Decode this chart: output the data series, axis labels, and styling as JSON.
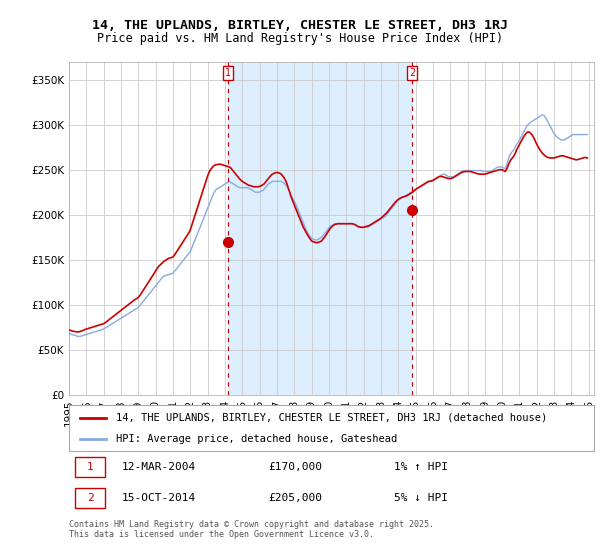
{
  "title": "14, THE UPLANDS, BIRTLEY, CHESTER LE STREET, DH3 1RJ",
  "subtitle": "Price paid vs. HM Land Registry's House Price Index (HPI)",
  "ylim": [
    0,
    370000
  ],
  "yticks": [
    0,
    50000,
    100000,
    150000,
    200000,
    250000,
    300000,
    350000
  ],
  "ytick_labels": [
    "£0",
    "£50K",
    "£100K",
    "£150K",
    "£200K",
    "£250K",
    "£300K",
    "£350K"
  ],
  "background_color": "#ffffff",
  "plot_bg_color": "#ffffff",
  "shade_color": "#ddeeff",
  "grid_color": "#cccccc",
  "line_color_property": "#cc0000",
  "line_color_hpi": "#88aadd",
  "transaction1_date_x": 2004.19,
  "transaction1_price": 170000,
  "transaction2_date_x": 2014.79,
  "transaction2_price": 205000,
  "legend_property": "14, THE UPLANDS, BIRTLEY, CHESTER LE STREET, DH3 1RJ (detached house)",
  "legend_hpi": "HPI: Average price, detached house, Gateshead",
  "annotation1": [
    "1",
    "12-MAR-2004",
    "£170,000",
    "1% ↑ HPI"
  ],
  "annotation2": [
    "2",
    "15-OCT-2014",
    "£205,000",
    "5% ↓ HPI"
  ],
  "footer": "Contains HM Land Registry data © Crown copyright and database right 2025.\nThis data is licensed under the Open Government Licence v3.0.",
  "title_fontsize": 9.5,
  "subtitle_fontsize": 8.5,
  "tick_fontsize": 7.5,
  "xmin": 1995,
  "xmax": 2025.3,
  "hpi_months": [
    1995.0,
    1995.083,
    1995.167,
    1995.25,
    1995.333,
    1995.417,
    1995.5,
    1995.583,
    1995.667,
    1995.75,
    1995.833,
    1995.917,
    1996.0,
    1996.083,
    1996.167,
    1996.25,
    1996.333,
    1996.417,
    1996.5,
    1996.583,
    1996.667,
    1996.75,
    1996.833,
    1996.917,
    1997.0,
    1997.083,
    1997.167,
    1997.25,
    1997.333,
    1997.417,
    1997.5,
    1997.583,
    1997.667,
    1997.75,
    1997.833,
    1997.917,
    1998.0,
    1998.083,
    1998.167,
    1998.25,
    1998.333,
    1998.417,
    1998.5,
    1998.583,
    1998.667,
    1998.75,
    1998.833,
    1998.917,
    1999.0,
    1999.083,
    1999.167,
    1999.25,
    1999.333,
    1999.417,
    1999.5,
    1999.583,
    1999.667,
    1999.75,
    1999.833,
    1999.917,
    2000.0,
    2000.083,
    2000.167,
    2000.25,
    2000.333,
    2000.417,
    2000.5,
    2000.583,
    2000.667,
    2000.75,
    2000.833,
    2000.917,
    2001.0,
    2001.083,
    2001.167,
    2001.25,
    2001.333,
    2001.417,
    2001.5,
    2001.583,
    2001.667,
    2001.75,
    2001.833,
    2001.917,
    2002.0,
    2002.083,
    2002.167,
    2002.25,
    2002.333,
    2002.417,
    2002.5,
    2002.583,
    2002.667,
    2002.75,
    2002.833,
    2002.917,
    2003.0,
    2003.083,
    2003.167,
    2003.25,
    2003.333,
    2003.417,
    2003.5,
    2003.583,
    2003.667,
    2003.75,
    2003.833,
    2003.917,
    2004.0,
    2004.083,
    2004.167,
    2004.25,
    2004.333,
    2004.417,
    2004.5,
    2004.583,
    2004.667,
    2004.75,
    2004.833,
    2004.917,
    2005.0,
    2005.083,
    2005.167,
    2005.25,
    2005.333,
    2005.417,
    2005.5,
    2005.583,
    2005.667,
    2005.75,
    2005.833,
    2005.917,
    2006.0,
    2006.083,
    2006.167,
    2006.25,
    2006.333,
    2006.417,
    2006.5,
    2006.583,
    2006.667,
    2006.75,
    2006.833,
    2006.917,
    2007.0,
    2007.083,
    2007.167,
    2007.25,
    2007.333,
    2007.417,
    2007.5,
    2007.583,
    2007.667,
    2007.75,
    2007.833,
    2007.917,
    2008.0,
    2008.083,
    2008.167,
    2008.25,
    2008.333,
    2008.417,
    2008.5,
    2008.583,
    2008.667,
    2008.75,
    2008.833,
    2008.917,
    2009.0,
    2009.083,
    2009.167,
    2009.25,
    2009.333,
    2009.417,
    2009.5,
    2009.583,
    2009.667,
    2009.75,
    2009.833,
    2009.917,
    2010.0,
    2010.083,
    2010.167,
    2010.25,
    2010.333,
    2010.417,
    2010.5,
    2010.583,
    2010.667,
    2010.75,
    2010.833,
    2010.917,
    2011.0,
    2011.083,
    2011.167,
    2011.25,
    2011.333,
    2011.417,
    2011.5,
    2011.583,
    2011.667,
    2011.75,
    2011.833,
    2011.917,
    2012.0,
    2012.083,
    2012.167,
    2012.25,
    2012.333,
    2012.417,
    2012.5,
    2012.583,
    2012.667,
    2012.75,
    2012.833,
    2012.917,
    2013.0,
    2013.083,
    2013.167,
    2013.25,
    2013.333,
    2013.417,
    2013.5,
    2013.583,
    2013.667,
    2013.75,
    2013.833,
    2013.917,
    2014.0,
    2014.083,
    2014.167,
    2014.25,
    2014.333,
    2014.417,
    2014.5,
    2014.583,
    2014.667,
    2014.75,
    2014.833,
    2014.917,
    2015.0,
    2015.083,
    2015.167,
    2015.25,
    2015.333,
    2015.417,
    2015.5,
    2015.583,
    2015.667,
    2015.75,
    2015.833,
    2015.917,
    2016.0,
    2016.083,
    2016.167,
    2016.25,
    2016.333,
    2016.417,
    2016.5,
    2016.583,
    2016.667,
    2016.75,
    2016.833,
    2016.917,
    2017.0,
    2017.083,
    2017.167,
    2017.25,
    2017.333,
    2017.417,
    2017.5,
    2017.583,
    2017.667,
    2017.75,
    2017.833,
    2017.917,
    2018.0,
    2018.083,
    2018.167,
    2018.25,
    2018.333,
    2018.417,
    2018.5,
    2018.583,
    2018.667,
    2018.75,
    2018.833,
    2018.917,
    2019.0,
    2019.083,
    2019.167,
    2019.25,
    2019.333,
    2019.417,
    2019.5,
    2019.583,
    2019.667,
    2019.75,
    2019.833,
    2019.917,
    2020.0,
    2020.083,
    2020.167,
    2020.25,
    2020.333,
    2020.417,
    2020.5,
    2020.583,
    2020.667,
    2020.75,
    2020.833,
    2020.917,
    2021.0,
    2021.083,
    2021.167,
    2021.25,
    2021.333,
    2021.417,
    2021.5,
    2021.583,
    2021.667,
    2021.75,
    2021.833,
    2021.917,
    2022.0,
    2022.083,
    2022.167,
    2022.25,
    2022.333,
    2022.417,
    2022.5,
    2022.583,
    2022.667,
    2022.75,
    2022.833,
    2022.917,
    2023.0,
    2023.083,
    2023.167,
    2023.25,
    2023.333,
    2023.417,
    2023.5,
    2023.583,
    2023.667,
    2023.75,
    2023.833,
    2023.917,
    2024.0,
    2024.083,
    2024.167,
    2024.25,
    2024.333,
    2024.417,
    2024.5,
    2024.583,
    2024.667,
    2024.75,
    2024.833,
    2024.917
  ],
  "hpi_values": [
    68000,
    67500,
    67000,
    66500,
    66000,
    65500,
    65000,
    64800,
    65000,
    65500,
    66000,
    66500,
    67000,
    67500,
    68000,
    68500,
    69000,
    69500,
    70000,
    70500,
    71000,
    71500,
    72000,
    72500,
    73000,
    74000,
    75000,
    76000,
    77000,
    78000,
    79000,
    80000,
    81000,
    82000,
    83000,
    84000,
    85000,
    86000,
    87000,
    88000,
    89000,
    90000,
    91000,
    92000,
    93000,
    94000,
    95000,
    96000,
    97000,
    99000,
    101000,
    103000,
    105000,
    107000,
    109000,
    111000,
    113000,
    115000,
    117000,
    119000,
    121000,
    123000,
    125000,
    127000,
    129000,
    131000,
    132000,
    132500,
    133000,
    133500,
    134000,
    134500,
    135000,
    137000,
    139000,
    141000,
    143000,
    145000,
    147000,
    149000,
    151000,
    153000,
    155000,
    157000,
    159000,
    163000,
    167000,
    171000,
    175000,
    179000,
    183000,
    187000,
    191000,
    195000,
    199000,
    203000,
    207000,
    211000,
    215000,
    219000,
    223000,
    226000,
    228000,
    229000,
    230000,
    231000,
    232000,
    233000,
    234000,
    235000,
    236000,
    237000,
    236000,
    235000,
    234000,
    233000,
    232000,
    231000,
    230000,
    230000,
    230000,
    230000,
    230000,
    230000,
    230000,
    229000,
    228000,
    227000,
    226000,
    225000,
    225000,
    225000,
    225000,
    226000,
    227000,
    228000,
    230000,
    232000,
    234000,
    235000,
    236000,
    237000,
    237000,
    237000,
    237000,
    237000,
    237000,
    237000,
    236000,
    235000,
    233000,
    231000,
    228000,
    225000,
    221000,
    218000,
    215000,
    212000,
    208000,
    204000,
    200000,
    196000,
    192000,
    188000,
    184000,
    181000,
    178000,
    176000,
    174000,
    173000,
    172000,
    172000,
    172000,
    173000,
    174000,
    175000,
    177000,
    179000,
    181000,
    183000,
    185000,
    187000,
    188000,
    189000,
    190000,
    190000,
    190000,
    190000,
    190000,
    190000,
    190000,
    190000,
    190000,
    190000,
    190000,
    190000,
    190000,
    190000,
    189000,
    188000,
    187000,
    186000,
    186000,
    186000,
    186000,
    186000,
    186000,
    186000,
    187000,
    188000,
    189000,
    190000,
    191000,
    192000,
    193000,
    194000,
    195000,
    196000,
    197000,
    198000,
    200000,
    202000,
    204000,
    206000,
    208000,
    210000,
    212000,
    214000,
    216000,
    217000,
    218000,
    219000,
    220000,
    221000,
    222000,
    223000,
    224000,
    225000,
    226000,
    227000,
    228000,
    229000,
    230000,
    231000,
    232000,
    233000,
    234000,
    235000,
    236000,
    237000,
    237000,
    237000,
    238000,
    239000,
    240000,
    241000,
    242000,
    243000,
    244000,
    245000,
    245000,
    244000,
    243000,
    242000,
    242000,
    242000,
    242000,
    243000,
    244000,
    245000,
    246000,
    247000,
    248000,
    249000,
    249000,
    249000,
    249000,
    249000,
    249000,
    249000,
    249000,
    249000,
    249000,
    249000,
    249000,
    249000,
    249000,
    248000,
    248000,
    248000,
    248000,
    248000,
    248000,
    249000,
    250000,
    251000,
    252000,
    253000,
    253000,
    253000,
    253000,
    252000,
    251000,
    255000,
    260000,
    265000,
    268000,
    270000,
    272000,
    275000,
    278000,
    280000,
    283000,
    286000,
    289000,
    292000,
    295000,
    298000,
    300000,
    302000,
    303000,
    304000,
    305000,
    306000,
    307000,
    308000,
    309000,
    310000,
    311000,
    310000,
    308000,
    305000,
    302000,
    299000,
    296000,
    293000,
    290000,
    288000,
    286000,
    285000,
    284000,
    283000,
    283000,
    283000,
    284000,
    285000,
    286000,
    287000,
    288000,
    289000,
    289000,
    289000,
    289000,
    289000,
    289000,
    289000,
    289000,
    289000,
    289000,
    289000
  ],
  "prop_months": [
    1995.0,
    1995.083,
    1995.167,
    1995.25,
    1995.333,
    1995.417,
    1995.5,
    1995.583,
    1995.667,
    1995.75,
    1995.833,
    1995.917,
    1996.0,
    1996.083,
    1996.167,
    1996.25,
    1996.333,
    1996.417,
    1996.5,
    1996.583,
    1996.667,
    1996.75,
    1996.833,
    1996.917,
    1997.0,
    1997.083,
    1997.167,
    1997.25,
    1997.333,
    1997.417,
    1997.5,
    1997.583,
    1997.667,
    1997.75,
    1997.833,
    1997.917,
    1998.0,
    1998.083,
    1998.167,
    1998.25,
    1998.333,
    1998.417,
    1998.5,
    1998.583,
    1998.667,
    1998.75,
    1998.833,
    1998.917,
    1999.0,
    1999.083,
    1999.167,
    1999.25,
    1999.333,
    1999.417,
    1999.5,
    1999.583,
    1999.667,
    1999.75,
    1999.833,
    1999.917,
    2000.0,
    2000.083,
    2000.167,
    2000.25,
    2000.333,
    2000.417,
    2000.5,
    2000.583,
    2000.667,
    2000.75,
    2000.833,
    2000.917,
    2001.0,
    2001.083,
    2001.167,
    2001.25,
    2001.333,
    2001.417,
    2001.5,
    2001.583,
    2001.667,
    2001.75,
    2001.833,
    2001.917,
    2002.0,
    2002.083,
    2002.167,
    2002.25,
    2002.333,
    2002.417,
    2002.5,
    2002.583,
    2002.667,
    2002.75,
    2002.833,
    2002.917,
    2003.0,
    2003.083,
    2003.167,
    2003.25,
    2003.333,
    2003.417,
    2003.5,
    2003.583,
    2003.667,
    2003.75,
    2003.833,
    2003.917,
    2004.0,
    2004.083,
    2004.167,
    2004.25,
    2004.333,
    2004.417,
    2004.5,
    2004.583,
    2004.667,
    2004.75,
    2004.833,
    2004.917,
    2005.0,
    2005.083,
    2005.167,
    2005.25,
    2005.333,
    2005.417,
    2005.5,
    2005.583,
    2005.667,
    2005.75,
    2005.833,
    2005.917,
    2006.0,
    2006.083,
    2006.167,
    2006.25,
    2006.333,
    2006.417,
    2006.5,
    2006.583,
    2006.667,
    2006.75,
    2006.833,
    2006.917,
    2007.0,
    2007.083,
    2007.167,
    2007.25,
    2007.333,
    2007.417,
    2007.5,
    2007.583,
    2007.667,
    2007.75,
    2007.833,
    2007.917,
    2008.0,
    2008.083,
    2008.167,
    2008.25,
    2008.333,
    2008.417,
    2008.5,
    2008.583,
    2008.667,
    2008.75,
    2008.833,
    2008.917,
    2009.0,
    2009.083,
    2009.167,
    2009.25,
    2009.333,
    2009.417,
    2009.5,
    2009.583,
    2009.667,
    2009.75,
    2009.833,
    2009.917,
    2010.0,
    2010.083,
    2010.167,
    2010.25,
    2010.333,
    2010.417,
    2010.5,
    2010.583,
    2010.667,
    2010.75,
    2010.833,
    2010.917,
    2011.0,
    2011.083,
    2011.167,
    2011.25,
    2011.333,
    2011.417,
    2011.5,
    2011.583,
    2011.667,
    2011.75,
    2011.833,
    2011.917,
    2012.0,
    2012.083,
    2012.167,
    2012.25,
    2012.333,
    2012.417,
    2012.5,
    2012.583,
    2012.667,
    2012.75,
    2012.833,
    2012.917,
    2013.0,
    2013.083,
    2013.167,
    2013.25,
    2013.333,
    2013.417,
    2013.5,
    2013.583,
    2013.667,
    2013.75,
    2013.833,
    2013.917,
    2014.0,
    2014.083,
    2014.167,
    2014.25,
    2014.333,
    2014.417,
    2014.5,
    2014.583,
    2014.667,
    2014.75,
    2014.833,
    2014.917,
    2015.0,
    2015.083,
    2015.167,
    2015.25,
    2015.333,
    2015.417,
    2015.5,
    2015.583,
    2015.667,
    2015.75,
    2015.833,
    2015.917,
    2016.0,
    2016.083,
    2016.167,
    2016.25,
    2016.333,
    2016.417,
    2016.5,
    2016.583,
    2016.667,
    2016.75,
    2016.833,
    2016.917,
    2017.0,
    2017.083,
    2017.167,
    2017.25,
    2017.333,
    2017.417,
    2017.5,
    2017.583,
    2017.667,
    2017.75,
    2017.833,
    2017.917,
    2018.0,
    2018.083,
    2018.167,
    2018.25,
    2018.333,
    2018.417,
    2018.5,
    2018.583,
    2018.667,
    2018.75,
    2018.833,
    2018.917,
    2019.0,
    2019.083,
    2019.167,
    2019.25,
    2019.333,
    2019.417,
    2019.5,
    2019.583,
    2019.667,
    2019.75,
    2019.833,
    2019.917,
    2020.0,
    2020.083,
    2020.167,
    2020.25,
    2020.333,
    2020.417,
    2020.5,
    2020.583,
    2020.667,
    2020.75,
    2020.833,
    2020.917,
    2021.0,
    2021.083,
    2021.167,
    2021.25,
    2021.333,
    2021.417,
    2021.5,
    2021.583,
    2021.667,
    2021.75,
    2021.833,
    2021.917,
    2022.0,
    2022.083,
    2022.167,
    2022.25,
    2022.333,
    2022.417,
    2022.5,
    2022.583,
    2022.667,
    2022.75,
    2022.833,
    2022.917,
    2023.0,
    2023.083,
    2023.167,
    2023.25,
    2023.333,
    2023.417,
    2023.5,
    2023.583,
    2023.667,
    2023.75,
    2023.833,
    2023.917,
    2024.0,
    2024.083,
    2024.167,
    2024.25,
    2024.333,
    2024.417,
    2024.5,
    2024.583,
    2024.667,
    2024.75,
    2024.833,
    2024.917
  ],
  "prop_values": [
    72000,
    71500,
    71000,
    70500,
    70200,
    70000,
    69800,
    70000,
    70500,
    71000,
    71800,
    72500,
    73000,
    73500,
    74000,
    74500,
    75000,
    75500,
    76000,
    76500,
    77000,
    77500,
    78000,
    78500,
    79000,
    80000,
    81200,
    82500,
    83800,
    85000,
    86200,
    87500,
    88800,
    90000,
    91200,
    92500,
    93800,
    95000,
    96200,
    97500,
    98800,
    100000,
    101200,
    102500,
    103800,
    105000,
    106000,
    107000,
    108000,
    110000,
    112500,
    115000,
    117500,
    120000,
    122500,
    125000,
    127500,
    130000,
    132500,
    135000,
    137500,
    140000,
    142500,
    144000,
    145500,
    147000,
    148500,
    149500,
    150500,
    151500,
    152000,
    152500,
    153000,
    155000,
    157500,
    160000,
    162500,
    165000,
    167500,
    170000,
    172500,
    175000,
    177500,
    180000,
    183000,
    188000,
    193000,
    198000,
    203000,
    208000,
    213000,
    218000,
    223000,
    228000,
    233000,
    238000,
    243000,
    247000,
    250000,
    252000,
    254000,
    255000,
    255500,
    255800,
    256000,
    256000,
    255500,
    255000,
    254500,
    254000,
    253500,
    253000,
    252000,
    250000,
    248000,
    246000,
    244000,
    242000,
    240000,
    238500,
    237000,
    236000,
    235000,
    234000,
    233000,
    232500,
    232000,
    231500,
    231000,
    231000,
    231000,
    231000,
    231500,
    232000,
    233000,
    234000,
    236000,
    238000,
    240000,
    242000,
    244000,
    245000,
    246000,
    246500,
    247000,
    246500,
    246000,
    245000,
    243000,
    241000,
    238000,
    234000,
    229000,
    224000,
    219000,
    215000,
    211000,
    207000,
    203000,
    199000,
    195000,
    191000,
    187000,
    184000,
    181000,
    178000,
    175500,
    173000,
    171000,
    170000,
    169500,
    169000,
    169000,
    169500,
    170000,
    171000,
    173000,
    175000,
    177500,
    180000,
    182500,
    185000,
    186500,
    188000,
    189000,
    189500,
    190000,
    190000,
    190000,
    190000,
    190000,
    190000,
    190000,
    190000,
    190000,
    190000,
    190000,
    189500,
    189000,
    188000,
    187000,
    186500,
    186000,
    186000,
    186000,
    186500,
    187000,
    187500,
    188000,
    189000,
    190000,
    191000,
    192000,
    193000,
    194000,
    195000,
    196000,
    197500,
    199000,
    200500,
    202000,
    204000,
    206000,
    208000,
    210000,
    212000,
    214000,
    215500,
    217000,
    218000,
    219000,
    219500,
    220000,
    220500,
    221000,
    222000,
    223000,
    224000,
    225000,
    226500,
    228000,
    229000,
    230000,
    231000,
    232000,
    233000,
    234000,
    235000,
    236000,
    237000,
    237000,
    237500,
    238000,
    239000,
    240000,
    241000,
    242000,
    242500,
    242500,
    242000,
    241500,
    241000,
    240500,
    240000,
    240000,
    240500,
    241000,
    242000,
    243000,
    244000,
    245000,
    246000,
    247000,
    247500,
    248000,
    248000,
    248000,
    248000,
    248000,
    247500,
    247000,
    246500,
    246000,
    245500,
    245000,
    245000,
    245000,
    245000,
    245000,
    245500,
    246000,
    246500,
    247000,
    247500,
    248000,
    248500,
    249000,
    249500,
    250000,
    250000,
    250000,
    249000,
    248000,
    250000,
    254000,
    258000,
    261000,
    263000,
    265000,
    268000,
    272000,
    275000,
    278000,
    281000,
    284000,
    287000,
    289000,
    291000,
    292000,
    291500,
    290000,
    288000,
    285000,
    281500,
    278000,
    275000,
    272500,
    270000,
    268000,
    266500,
    265000,
    264000,
    263500,
    263000,
    263000,
    263000,
    263000,
    263500,
    264000,
    264500,
    265000,
    265500,
    265500,
    265000,
    264500,
    264000,
    263500,
    263000,
    262500,
    262000,
    261500,
    261000,
    261000,
    261500,
    262000,
    262500,
    263000,
    263500,
    263500,
    263000
  ]
}
